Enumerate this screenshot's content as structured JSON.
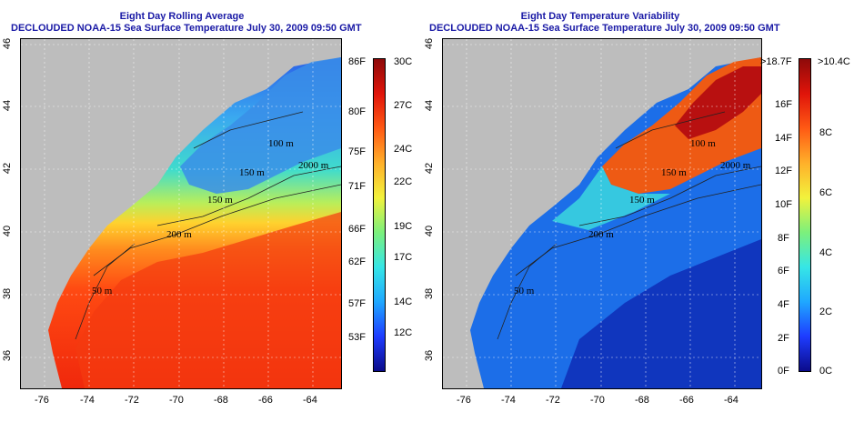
{
  "left_panel": {
    "title_line1": "Eight Day Rolling Average",
    "title_line2": "DECLOUDED NOAA-15 Sea Surface Temperature July 30, 2009 09:50 GMT",
    "x_ticks": [
      "-76",
      "-74",
      "-72",
      "-70",
      "-68",
      "-66",
      "-64"
    ],
    "y_ticks": [
      "46",
      "44",
      "42",
      "40",
      "38",
      "36"
    ],
    "contour_labels": [
      "100 m",
      "2000 m",
      "150 m",
      "150 m",
      "200 m",
      "50 m"
    ],
    "colorbar_f": [
      "86F",
      "80F",
      "75F",
      "71F",
      "66F",
      "62F",
      "57F",
      "53F"
    ],
    "colorbar_c": [
      "30C",
      "27C",
      "24C",
      "22C",
      "19C",
      "17C",
      "14C",
      "12C"
    ]
  },
  "right_panel": {
    "title_line1": "Eight Day Temperature Variability",
    "title_line2": "DECLOUDED NOAA-15 Sea Surface Temperature July 30, 2009 09:50 GMT",
    "x_ticks": [
      "-76",
      "-74",
      "-72",
      "-70",
      "-68",
      "-66",
      "-64"
    ],
    "y_ticks": [
      "46",
      "44",
      "42",
      "40",
      "38",
      "36"
    ],
    "contour_labels": [
      "100 m",
      "2000 m",
      "150 m",
      "150 m",
      "200 m",
      "50 m"
    ],
    "colorbar_f": [
      ">18.7F",
      "16F",
      "14F",
      "12F",
      "10F",
      "8F",
      "6F",
      "4F",
      "2F",
      "0F"
    ],
    "colorbar_c": [
      ">10.4C",
      "8C",
      "6C",
      "4C",
      "2C",
      "0C"
    ]
  },
  "colors": {
    "title": "#1a1aa6",
    "land": "#bdbdbd",
    "sst_scale": [
      "#0b0b8a",
      "#1e3cff",
      "#1fa8ff",
      "#36e6e6",
      "#7cf07c",
      "#f2f23c",
      "#ffb02a",
      "#ff5a14",
      "#e0140a",
      "#8e0a0a"
    ]
  }
}
